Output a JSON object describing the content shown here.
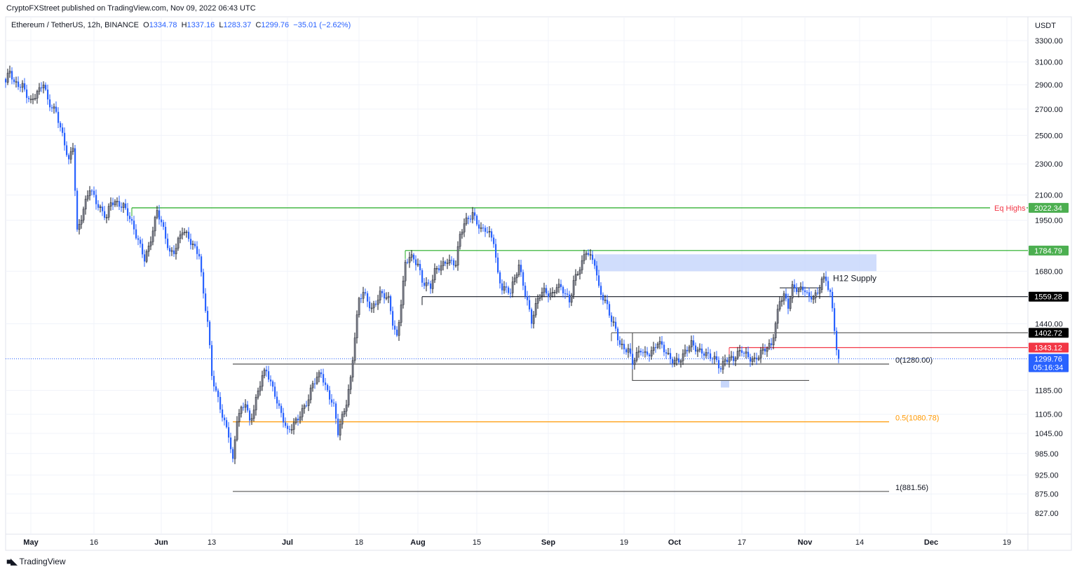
{
  "header": {
    "published": "CryptoFXStreet published on TradingView.com, Nov 09, 2022 06:43 UTC",
    "symbol": "Ethereum / TetherUS, 12h, BINANCE",
    "o_label": "O",
    "o": "1334.78",
    "h_label": "H",
    "h": "1337.16",
    "l_label": "L",
    "l": "1283.37",
    "c_label": "C",
    "c": "1299.76",
    "change": "−35.01 (−2.62%)"
  },
  "footer": {
    "brand": "TradingView",
    "logo_icon": "tradingview-logo-icon"
  },
  "colors": {
    "up": "#787b86",
    "down": "#2962ff",
    "green": "#089981",
    "line_green": "#22ab22",
    "red": "#f23645",
    "orange": "#ff9800",
    "grid": "#f0f3fa",
    "supply": "#c8d7fb"
  },
  "chart_data": {
    "type": "candlestick",
    "interval": "12h",
    "currency_label": "USDT",
    "y_scale": "log",
    "ylim": [
      742,
      3538
    ],
    "xlim": [
      "2022-04-25T08:00",
      "2022-12-24T00:00"
    ],
    "grid": true,
    "price_ticks": [
      "3300.00",
      "3100.00",
      "2900.00",
      "2700.00",
      "2500.00",
      "2300.00",
      "2100.00",
      "1950.00",
      "1680.00",
      "1440.00",
      "1185.00",
      "1105.00",
      "1045.00",
      "985.00",
      "925.00",
      "875.00",
      "827.00"
    ],
    "time_ticks": [
      {
        "date": "2022-05-01",
        "label": "May",
        "bold": true
      },
      {
        "date": "2022-05-16",
        "label": "16"
      },
      {
        "date": "2022-06-01",
        "label": "Jun",
        "bold": true
      },
      {
        "date": "2022-06-13",
        "label": "13"
      },
      {
        "date": "2022-07-01",
        "label": "Jul",
        "bold": true
      },
      {
        "date": "2022-07-18",
        "label": "18"
      },
      {
        "date": "2022-08-01",
        "label": "Aug",
        "bold": true
      },
      {
        "date": "2022-08-15",
        "label": "15"
      },
      {
        "date": "2022-09-01",
        "label": "Sep",
        "bold": true
      },
      {
        "date": "2022-09-19",
        "label": "19"
      },
      {
        "date": "2022-10-01",
        "label": "Oct",
        "bold": true
      },
      {
        "date": "2022-10-17",
        "label": "17"
      },
      {
        "date": "2022-11-01",
        "label": "Nov",
        "bold": true
      },
      {
        "date": "2022-11-14",
        "label": "14"
      },
      {
        "date": "2022-12-01",
        "label": "Dec",
        "bold": true
      },
      {
        "date": "2022-12-19",
        "label": "19"
      }
    ],
    "closes": [
      [
        "2022-04-25",
        2920
      ],
      [
        "2022-04-26",
        3010
      ],
      [
        "2022-04-27",
        2895
      ],
      [
        "2022-04-29",
        2905
      ],
      [
        "2022-05-01",
        2755
      ],
      [
        "2022-05-03",
        2840
      ],
      [
        "2022-05-04",
        2920
      ],
      [
        "2022-05-05",
        2780
      ],
      [
        "2022-05-07",
        2675
      ],
      [
        "2022-05-08",
        2540
      ],
      [
        "2022-05-10",
        2320
      ],
      [
        "2022-05-11",
        2440
      ],
      [
        "2022-05-12",
        1890
      ],
      [
        "2022-05-14",
        2045
      ],
      [
        "2022-05-15",
        2135
      ],
      [
        "2022-05-17",
        2045
      ],
      [
        "2022-05-19",
        1965
      ],
      [
        "2022-05-20",
        2045
      ],
      [
        "2022-05-23",
        2045
      ],
      [
        "2022-05-24",
        2000
      ],
      [
        "2022-05-26",
        1855
      ],
      [
        "2022-05-28",
        1745
      ],
      [
        "2022-05-29",
        1810
      ],
      [
        "2022-05-31",
        2000
      ],
      [
        "2022-06-01",
        1925
      ],
      [
        "2022-06-03",
        1775
      ],
      [
        "2022-06-04",
        1790
      ],
      [
        "2022-06-06",
        1890
      ],
      [
        "2022-06-08",
        1825
      ],
      [
        "2022-06-10",
        1775
      ],
      [
        "2022-06-11",
        1572
      ],
      [
        "2022-06-12",
        1446
      ],
      [
        "2022-06-13",
        1230
      ],
      [
        "2022-06-14",
        1178
      ],
      [
        "2022-06-16",
        1085
      ],
      [
        "2022-06-17",
        1043
      ],
      [
        "2022-06-18",
        958
      ],
      [
        "2022-06-19",
        1085
      ],
      [
        "2022-06-21",
        1150
      ],
      [
        "2022-06-22",
        1085
      ],
      [
        "2022-06-23",
        1125
      ],
      [
        "2022-06-25",
        1230
      ],
      [
        "2022-06-26",
        1255
      ],
      [
        "2022-06-28",
        1178
      ],
      [
        "2022-06-29",
        1125
      ],
      [
        "2022-07-01",
        1043
      ],
      [
        "2022-07-02",
        1065
      ],
      [
        "2022-07-04",
        1110
      ],
      [
        "2022-07-06",
        1150
      ],
      [
        "2022-07-07",
        1203
      ],
      [
        "2022-07-09",
        1255
      ],
      [
        "2022-07-10",
        1203
      ],
      [
        "2022-07-12",
        1125
      ],
      [
        "2022-07-13",
        1043
      ],
      [
        "2022-07-15",
        1150
      ],
      [
        "2022-07-16",
        1230
      ],
      [
        "2022-07-17",
        1388
      ],
      [
        "2022-07-18",
        1540
      ],
      [
        "2022-07-19",
        1572
      ],
      [
        "2022-07-21",
        1510
      ],
      [
        "2022-07-23",
        1572
      ],
      [
        "2022-07-25",
        1540
      ],
      [
        "2022-07-26",
        1446
      ],
      [
        "2022-07-27",
        1388
      ],
      [
        "2022-07-28",
        1540
      ],
      [
        "2022-07-29",
        1715
      ],
      [
        "2022-07-30",
        1745
      ],
      [
        "2022-08-01",
        1715
      ],
      [
        "2022-08-02",
        1640
      ],
      [
        "2022-08-04",
        1605
      ],
      [
        "2022-08-05",
        1670
      ],
      [
        "2022-08-07",
        1715
      ],
      [
        "2022-08-08",
        1745
      ],
      [
        "2022-08-10",
        1715
      ],
      [
        "2022-08-11",
        1855
      ],
      [
        "2022-08-12",
        1925
      ],
      [
        "2022-08-13",
        1965
      ],
      [
        "2022-08-14",
        2000
      ],
      [
        "2022-08-16",
        1890
      ],
      [
        "2022-08-17",
        1890
      ],
      [
        "2022-08-19",
        1840
      ],
      [
        "2022-08-20",
        1670
      ],
      [
        "2022-08-21",
        1605
      ],
      [
        "2022-08-23",
        1572
      ],
      [
        "2022-08-24",
        1640
      ],
      [
        "2022-08-25",
        1715
      ],
      [
        "2022-08-27",
        1540
      ],
      [
        "2022-08-28",
        1446
      ],
      [
        "2022-08-30",
        1572
      ],
      [
        "2022-08-31",
        1590
      ],
      [
        "2022-09-02",
        1572
      ],
      [
        "2022-09-03",
        1605
      ],
      [
        "2022-09-05",
        1572
      ],
      [
        "2022-09-06",
        1540
      ],
      [
        "2022-09-07",
        1640
      ],
      [
        "2022-09-09",
        1715
      ],
      [
        "2022-09-10",
        1775
      ],
      [
        "2022-09-11",
        1745
      ],
      [
        "2022-09-12",
        1730
      ],
      [
        "2022-09-13",
        1605
      ],
      [
        "2022-09-15",
        1510
      ],
      [
        "2022-09-16",
        1446
      ],
      [
        "2022-09-17",
        1415
      ],
      [
        "2022-09-18",
        1360
      ],
      [
        "2022-09-20",
        1335
      ],
      [
        "2022-09-21",
        1280
      ],
      [
        "2022-09-23",
        1335
      ],
      [
        "2022-09-24",
        1322
      ],
      [
        "2022-09-26",
        1335
      ],
      [
        "2022-09-27",
        1360
      ],
      [
        "2022-09-29",
        1322
      ],
      [
        "2022-09-30",
        1305
      ],
      [
        "2022-10-02",
        1292
      ],
      [
        "2022-10-03",
        1305
      ],
      [
        "2022-10-05",
        1360
      ],
      [
        "2022-10-06",
        1347
      ],
      [
        "2022-10-08",
        1322
      ],
      [
        "2022-10-09",
        1305
      ],
      [
        "2022-10-11",
        1292
      ],
      [
        "2022-10-12",
        1268
      ],
      [
        "2022-10-13",
        1305
      ],
      [
        "2022-10-15",
        1292
      ],
      [
        "2022-10-17",
        1335
      ],
      [
        "2022-10-18",
        1322
      ],
      [
        "2022-10-20",
        1292
      ],
      [
        "2022-10-21",
        1305
      ],
      [
        "2022-10-23",
        1347
      ],
      [
        "2022-10-24",
        1360
      ],
      [
        "2022-10-25",
        1446
      ],
      [
        "2022-10-26",
        1540
      ],
      [
        "2022-10-27",
        1555
      ],
      [
        "2022-10-28",
        1510
      ],
      [
        "2022-10-29",
        1605
      ],
      [
        "2022-10-30",
        1605
      ],
      [
        "2022-11-01",
        1590
      ],
      [
        "2022-11-02",
        1540
      ],
      [
        "2022-11-04",
        1572
      ],
      [
        "2022-11-05",
        1655
      ],
      [
        "2022-11-06",
        1640
      ],
      [
        "2022-11-07",
        1572
      ],
      [
        "2022-11-08T12:00",
        1334.78
      ],
      [
        "2022-11-09",
        1299.76
      ]
    ],
    "levels": [
      {
        "price": 2022.34,
        "tag": "2022.34",
        "from": "2022-05-25",
        "color": "#22ab22",
        "tag_color": "#4caf50",
        "label": "Eq Highs",
        "label_color": "#f23645"
      },
      {
        "price": 1784.79,
        "tag": "1784.79",
        "from": "2022-07-29",
        "color": "#22ab22",
        "tag_color": "#4caf50"
      },
      {
        "price": 1559.28,
        "tag": "1559.28",
        "from": "2022-08-02",
        "color": "#131722",
        "tag_color": "#000000"
      },
      {
        "price": 1402.72,
        "tag": "1402.72",
        "from": "2022-09-16",
        "color": "#555555",
        "tag_color": "#000000"
      },
      {
        "price": 1343.12,
        "tag": "1343.12",
        "from": "2022-10-14",
        "color": "#f23645",
        "tag_color": "#f23645"
      }
    ],
    "current_price": {
      "tag": "1299.76",
      "countdown": "05:16:34",
      "price": 1299.76,
      "color": "#2962ff"
    },
    "fib": {
      "from": "2022-06-18",
      "to": "2022-11-21",
      "levels": [
        {
          "price": 1280.0,
          "label": "0(1280.00)",
          "color": "#555555"
        },
        {
          "price": 1080.78,
          "label": "0.5(1080.78)",
          "color": "#ff9800"
        },
        {
          "price": 881.56,
          "label": "1(881.56)",
          "color": "#555555"
        }
      ]
    },
    "range_box": {
      "from": "2022-09-21",
      "to": "2022-11-02",
      "top": 1402.72,
      "bottom": 1220
    },
    "consolidation_line": {
      "from": "2022-10-26",
      "to": "2022-11-05",
      "price": 1600
    },
    "supply_zone": {
      "from": "2022-09-12",
      "to": "2022-11-18",
      "top": 1765,
      "bottom": 1680,
      "label": "H12 Supply"
    },
    "liquidity_marker": {
      "from": "2022-10-12",
      "to": "2022-10-14",
      "top": 1220,
      "bottom": 1195
    }
  }
}
